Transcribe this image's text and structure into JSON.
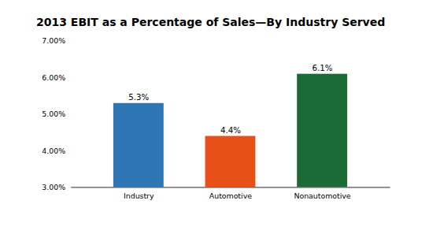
{
  "chart_data": {
    "type": "bar",
    "title": "2013 EBIT as a Percentage of Sales—By Industry Served",
    "categories": [
      "Industry",
      "Automotive",
      "Nonautomotive"
    ],
    "values": [
      5.3,
      4.4,
      6.1
    ],
    "value_labels": [
      "5.3%",
      "4.4%",
      "6.1%"
    ],
    "colors": [
      "#2E75B6",
      "#E8501A",
      "#1A6B35"
    ],
    "ylim": [
      3.0,
      7.0
    ],
    "yticks": [
      {
        "value": 3.0,
        "label": "3.00%"
      },
      {
        "value": 4.0,
        "label": "4.00%"
      },
      {
        "value": 5.0,
        "label": "5.00%"
      },
      {
        "value": 6.0,
        "label": "6.00%"
      },
      {
        "value": 7.0,
        "label": "7.00%"
      }
    ],
    "data_labels": true,
    "grid": false
  }
}
